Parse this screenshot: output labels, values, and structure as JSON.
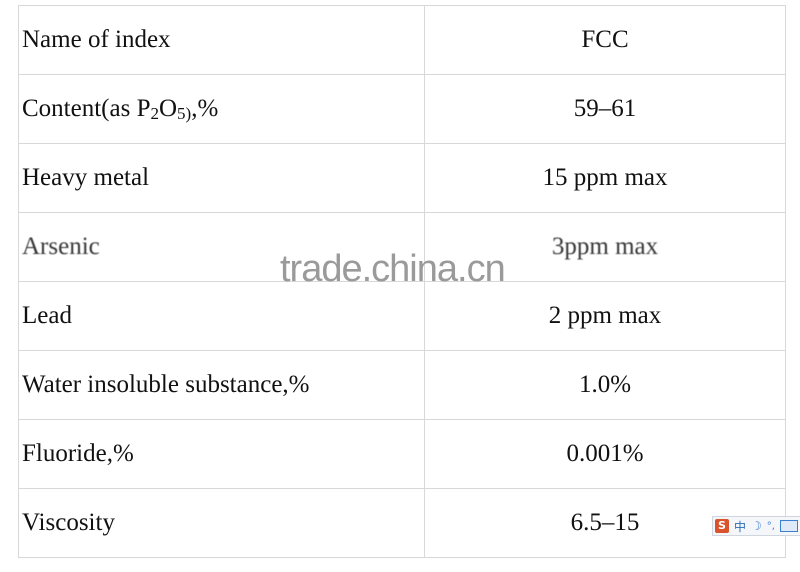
{
  "table": {
    "header": {
      "name": "Name of index",
      "value": "FCC"
    },
    "content_row": {
      "label_parts": [
        "Content(as P",
        "2",
        "O",
        "5)",
        ",%"
      ],
      "value": "59–61"
    },
    "rows": [
      {
        "name": "Heavy metal",
        "value": "15 ppm max"
      },
      {
        "name": "Arsenic",
        "value": "3ppm max"
      },
      {
        "name": "Lead",
        "value": "2 ppm max"
      },
      {
        "name": "Water insoluble substance,%",
        "value": "1.0%"
      },
      {
        "name": "Fluoride,%",
        "value": "0.001%"
      },
      {
        "name": "Viscosity",
        "value": "6.5–15"
      }
    ]
  },
  "watermark": "trade.china.cn",
  "ime_toolbar": {
    "logo": "S",
    "mode": "中",
    "icons": [
      "sogou-logo-icon",
      "moon-icon",
      "punctuation-icon",
      "keyboard-icon"
    ]
  }
}
